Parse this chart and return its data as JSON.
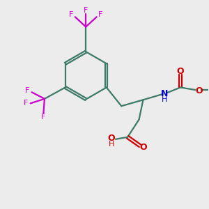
{
  "bg_color": "#ececec",
  "bond_color": "#3d7a68",
  "fluorine_color": "#cc00cc",
  "oxygen_color": "#cc0000",
  "nitrogen_color": "#0000cc",
  "line_width": 1.6,
  "figsize": [
    3.0,
    3.0
  ],
  "dpi": 100,
  "xlim": [
    0,
    10
  ],
  "ylim": [
    0,
    10
  ]
}
